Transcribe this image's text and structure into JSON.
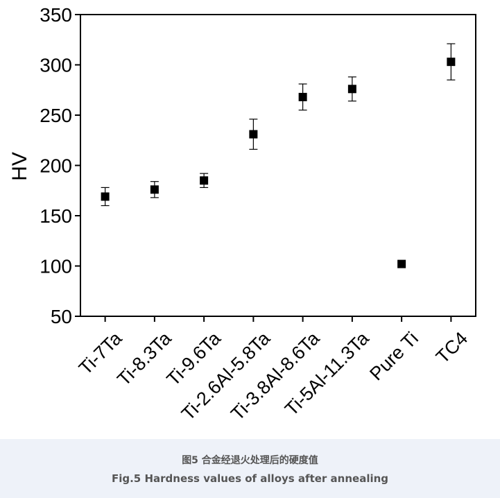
{
  "chart_data": {
    "type": "scatter",
    "title": "",
    "xlabel": "",
    "ylabel": "HV",
    "ylim": [
      50,
      350
    ],
    "yticks": [
      50,
      100,
      150,
      200,
      250,
      300,
      350
    ],
    "categories": [
      "Ti-7Ta",
      "Ti-8.3Ta",
      "Ti-9.6Ta",
      "Ti-2.6Al-5.8Ta",
      "Ti-3.8Al-8.6Ta",
      "Ti-5Al-11.3Ta",
      "Pure Ti",
      "TC4"
    ],
    "values": [
      169,
      176,
      185,
      231,
      268,
      276,
      102,
      303
    ],
    "error": [
      9,
      8,
      7,
      15,
      13,
      12,
      0,
      18
    ],
    "grid": false,
    "marker": "square",
    "color": "#000000"
  },
  "caption": {
    "cn": "图5 合金经退火处理后的硬度值",
    "en": "Fig.5 Hardness values of alloys after annealing"
  }
}
